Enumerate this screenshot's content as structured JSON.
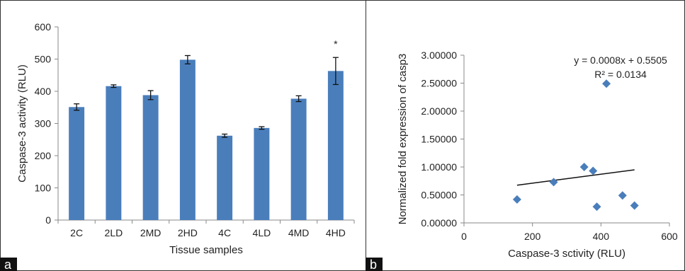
{
  "chart_data": [
    {
      "panel": "a",
      "type": "bar",
      "categories": [
        "2C",
        "2LD",
        "2MD",
        "2HD",
        "4C",
        "4LD",
        "4MD",
        "4HD"
      ],
      "values": [
        351,
        416,
        388,
        498,
        262,
        286,
        377,
        463
      ],
      "errors": [
        10,
        4,
        14,
        13,
        5,
        4,
        9,
        42
      ],
      "annotations": [
        {
          "category": "4HD",
          "text": "*"
        }
      ],
      "xlabel": "Tissue samples",
      "ylabel": "Caspase-3 activity (RLU)",
      "ylim": [
        0,
        600
      ],
      "yticks": [
        "0",
        "100",
        "200",
        "300",
        "400",
        "500",
        "600"
      ],
      "color": "#4a7ebb",
      "grid": false
    },
    {
      "panel": "b",
      "type": "scatter",
      "points": [
        {
          "x": 155,
          "y": 0.42
        },
        {
          "x": 262,
          "y": 0.73
        },
        {
          "x": 351,
          "y": 1.0
        },
        {
          "x": 377,
          "y": 0.93
        },
        {
          "x": 388,
          "y": 0.29
        },
        {
          "x": 416,
          "y": 2.49
        },
        {
          "x": 463,
          "y": 0.49
        },
        {
          "x": 498,
          "y": 0.31
        }
      ],
      "trendline": {
        "slope": 0.0008,
        "intercept": 0.5505,
        "x_range": [
          155,
          498
        ]
      },
      "equation": "y = 0.0008x + 0.5505",
      "r_squared": "R² = 0.0134",
      "xlabel": "Caspase-3 sctivity (RLU)",
      "ylabel": "Normalized fold expression of casp3",
      "xlim": [
        0,
        600
      ],
      "ylim": [
        0,
        3
      ],
      "xticks": [
        "0",
        "200",
        "400",
        "600"
      ],
      "yticks": [
        "0.00000",
        "0.50000",
        "1.00000",
        "1.50000",
        "2.00000",
        "2.50000",
        "3.00000"
      ],
      "color": "#4a7ebb",
      "grid": false
    }
  ],
  "panels": {
    "a": "a",
    "b": "b"
  }
}
